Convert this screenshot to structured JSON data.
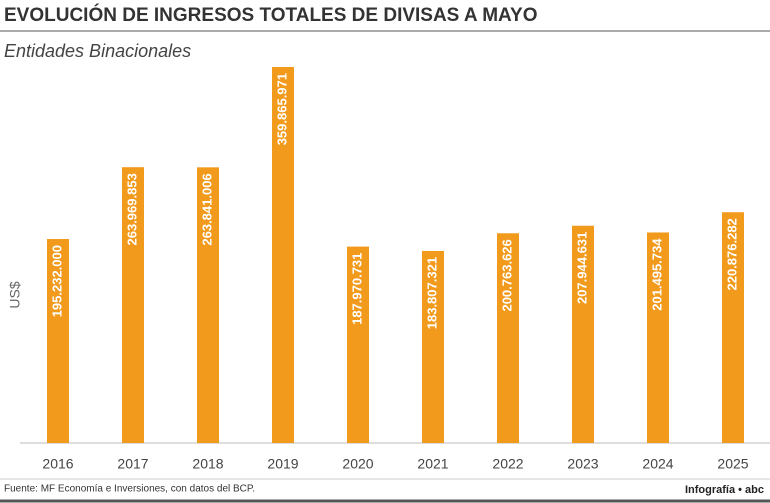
{
  "chart_data": {
    "type": "bar",
    "title": "EVOLUCIÓN DE INGRESOS TOTALES DE DIVISAS A MAYO",
    "subtitle": "Entidades Binacionales",
    "y_label": "US$",
    "categories": [
      "2016",
      "2017",
      "2018",
      "2019",
      "2020",
      "2021",
      "2022",
      "2023",
      "2024",
      "2025"
    ],
    "values": [
      195232000,
      263969853,
      263841006,
      359865971,
      187970731,
      183807321,
      200763626,
      207944631,
      201495734,
      220876282
    ],
    "value_labels": [
      "195.232.000",
      "263.969.853",
      "263.841.006",
      "359.865.971",
      "187.970.731",
      "183.807.321",
      "200.763.626",
      "207.944.631",
      "201.495.734",
      "220.876.282"
    ],
    "color": "#f29a1c",
    "source": "Fuente: MF Economía e Inversiones, con datos del BCP.",
    "credit": "Infografía • abc"
  }
}
